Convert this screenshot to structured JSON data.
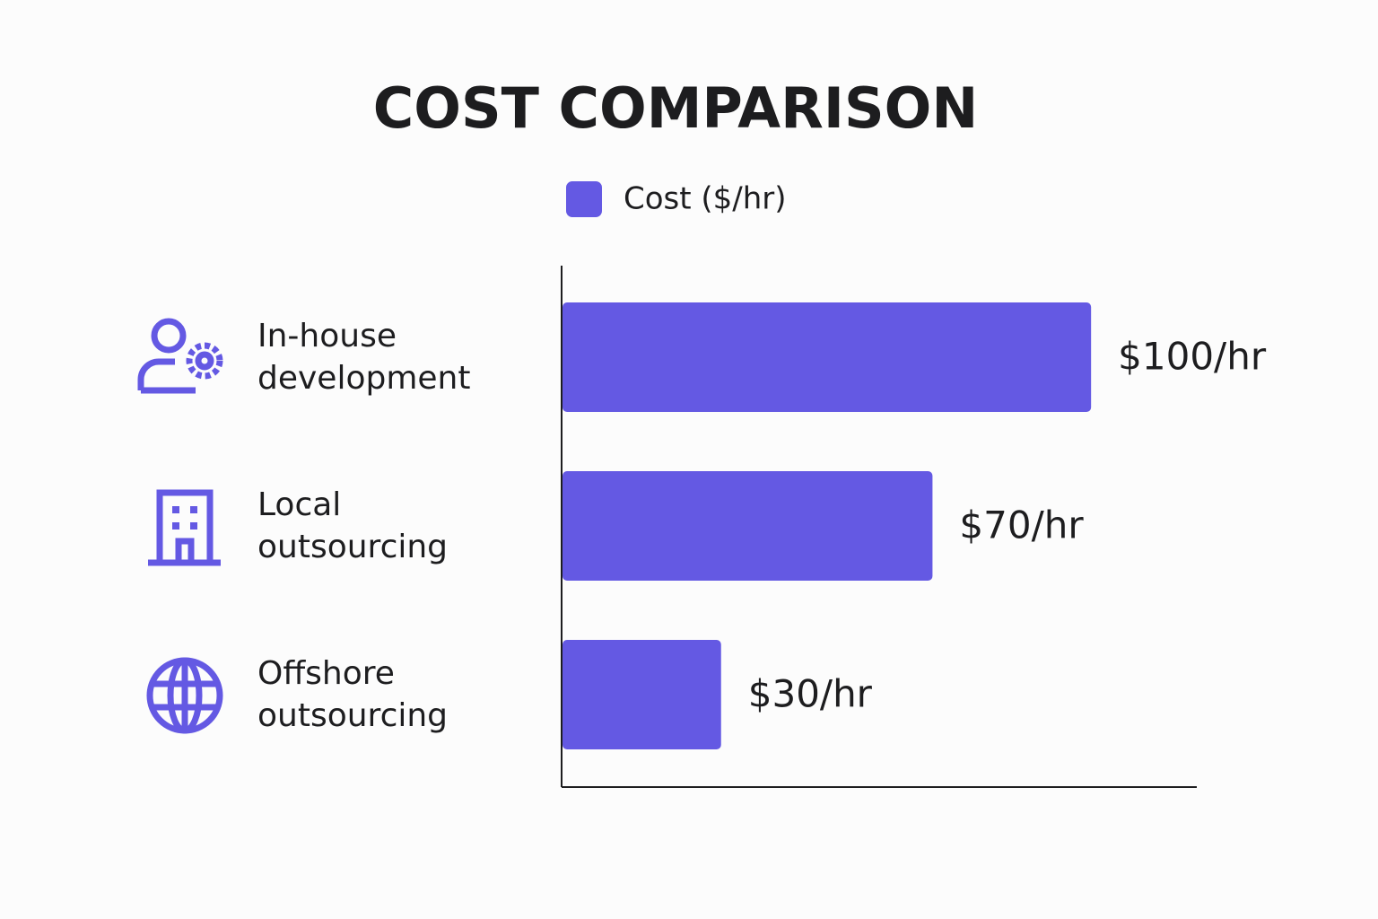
{
  "chart_data": {
    "type": "hbar",
    "title": "COST COMPARISON",
    "categories": [
      "In-house development",
      "Local outsourcing",
      "Offshore outsourcing"
    ],
    "series": [
      {
        "name": "Cost ($/hr)",
        "color": "#6459e3",
        "values": [
          100,
          70,
          30
        ],
        "value_labels": [
          "$100/hr",
          "$70/hr",
          "$30/hr"
        ]
      }
    ],
    "xlim": [
      0,
      120
    ],
    "grid": false
  }
}
